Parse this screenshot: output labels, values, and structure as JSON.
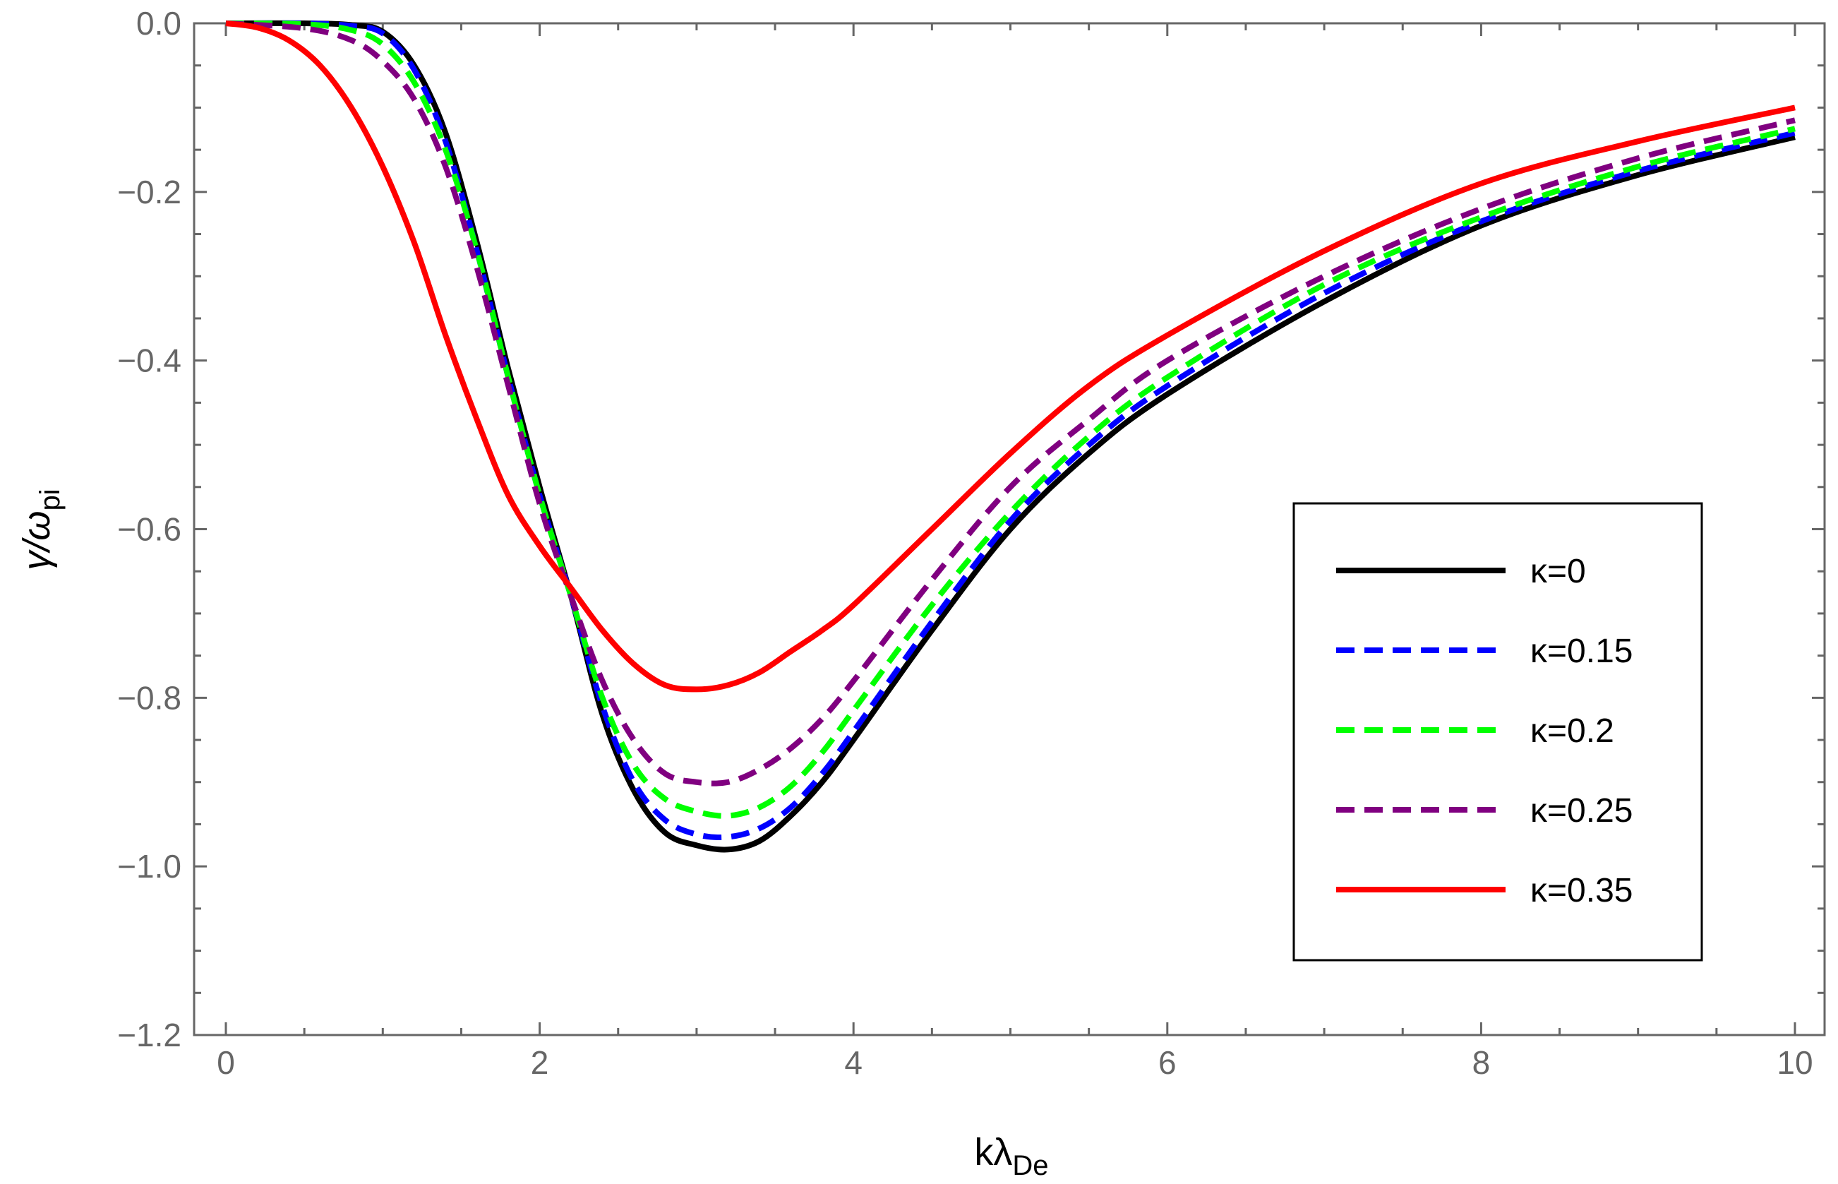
{
  "chart_data": {
    "type": "line",
    "xlabel": "kλDe",
    "xlabel_main": "kλ",
    "xlabel_sub": "De",
    "ylabel": "γ/ωpi",
    "ylabel_main": "γ/ω",
    "ylabel_sub": "pi",
    "xlim": [
      0,
      10
    ],
    "ylim": [
      -1.2,
      0
    ],
    "x_ticks": [
      0,
      2,
      4,
      6,
      8,
      10
    ],
    "x_tick_labels": [
      "0",
      "2",
      "4",
      "6",
      "8",
      "10"
    ],
    "y_ticks": [
      0,
      -0.2,
      -0.4,
      -0.6,
      -0.8,
      -1.0,
      -1.2
    ],
    "y_tick_labels": [
      "0.0",
      "−0.2",
      "−0.4",
      "−0.6",
      "−0.8",
      "−1.0",
      "−1.2"
    ],
    "grid": false,
    "legend_position": "right",
    "series": [
      {
        "name": "κ=0",
        "color": "#000000",
        "dash": "solid",
        "x": [
          0,
          0.5,
          0.8,
          1,
          1.2,
          1.4,
          1.6,
          1.8,
          2,
          2.2,
          2.4,
          2.6,
          2.8,
          3,
          3.2,
          3.4,
          3.6,
          3.8,
          4,
          4.5,
          5,
          5.5,
          6,
          7,
          8,
          9,
          10
        ],
        "y": [
          0,
          0,
          -0.002,
          -0.01,
          -0.05,
          -0.13,
          -0.26,
          -0.41,
          -0.55,
          -0.68,
          -0.82,
          -0.91,
          -0.96,
          -0.975,
          -0.98,
          -0.97,
          -0.94,
          -0.9,
          -0.85,
          -0.72,
          -0.6,
          -0.51,
          -0.44,
          -0.33,
          -0.24,
          -0.18,
          -0.135
        ]
      },
      {
        "name": "κ=0.15",
        "color": "#0000ff",
        "dash": "dashed",
        "x": [
          0,
          0.5,
          0.8,
          1,
          1.2,
          1.4,
          1.6,
          1.8,
          2,
          2.2,
          2.4,
          2.6,
          2.8,
          3,
          3.2,
          3.4,
          3.6,
          3.8,
          4,
          4.5,
          5,
          5.5,
          6,
          7,
          8,
          9,
          10
        ],
        "y": [
          0,
          0,
          -0.003,
          -0.012,
          -0.055,
          -0.14,
          -0.27,
          -0.42,
          -0.56,
          -0.68,
          -0.81,
          -0.9,
          -0.945,
          -0.962,
          -0.965,
          -0.955,
          -0.93,
          -0.89,
          -0.84,
          -0.71,
          -0.59,
          -0.5,
          -0.43,
          -0.32,
          -0.235,
          -0.175,
          -0.13
        ]
      },
      {
        "name": "κ=0.2",
        "color": "#00ff00",
        "dash": "dashed",
        "x": [
          0,
          0.5,
          0.8,
          1,
          1.2,
          1.4,
          1.6,
          1.8,
          2,
          2.2,
          2.4,
          2.6,
          2.8,
          3,
          3.2,
          3.4,
          3.6,
          3.8,
          4,
          4.5,
          5,
          5.5,
          6,
          7,
          8,
          9,
          10
        ],
        "y": [
          0,
          -0.001,
          -0.008,
          -0.025,
          -0.07,
          -0.15,
          -0.27,
          -0.42,
          -0.56,
          -0.68,
          -0.8,
          -0.88,
          -0.92,
          -0.935,
          -0.94,
          -0.93,
          -0.905,
          -0.865,
          -0.815,
          -0.69,
          -0.58,
          -0.49,
          -0.42,
          -0.31,
          -0.23,
          -0.17,
          -0.125
        ]
      },
      {
        "name": "κ=0.25",
        "color": "#800080",
        "dash": "dashed",
        "x": [
          0,
          0.5,
          0.8,
          1,
          1.2,
          1.4,
          1.6,
          1.8,
          2,
          2.2,
          2.4,
          2.6,
          2.8,
          3,
          3.2,
          3.4,
          3.6,
          3.8,
          4,
          4.5,
          5,
          5.5,
          6,
          7,
          8,
          9,
          10
        ],
        "y": [
          0,
          -0.006,
          -0.02,
          -0.045,
          -0.09,
          -0.17,
          -0.29,
          -0.43,
          -0.57,
          -0.68,
          -0.78,
          -0.85,
          -0.89,
          -0.9,
          -0.9,
          -0.885,
          -0.86,
          -0.825,
          -0.78,
          -0.66,
          -0.55,
          -0.47,
          -0.4,
          -0.3,
          -0.22,
          -0.16,
          -0.115
        ]
      },
      {
        "name": "κ=0.35",
        "color": "#ff0000",
        "dash": "solid",
        "x": [
          0,
          0.2,
          0.4,
          0.6,
          0.8,
          1,
          1.2,
          1.4,
          1.6,
          1.8,
          2,
          2.2,
          2.4,
          2.6,
          2.8,
          3,
          3.2,
          3.4,
          3.6,
          3.8,
          4,
          4.5,
          5,
          5.5,
          6,
          7,
          8,
          9,
          10
        ],
        "y": [
          0,
          -0.005,
          -0.02,
          -0.05,
          -0.1,
          -0.17,
          -0.26,
          -0.37,
          -0.47,
          -0.56,
          -0.62,
          -0.67,
          -0.72,
          -0.76,
          -0.785,
          -0.79,
          -0.785,
          -0.77,
          -0.745,
          -0.72,
          -0.69,
          -0.6,
          -0.51,
          -0.43,
          -0.37,
          -0.27,
          -0.19,
          -0.14,
          -0.1
        ]
      }
    ]
  }
}
